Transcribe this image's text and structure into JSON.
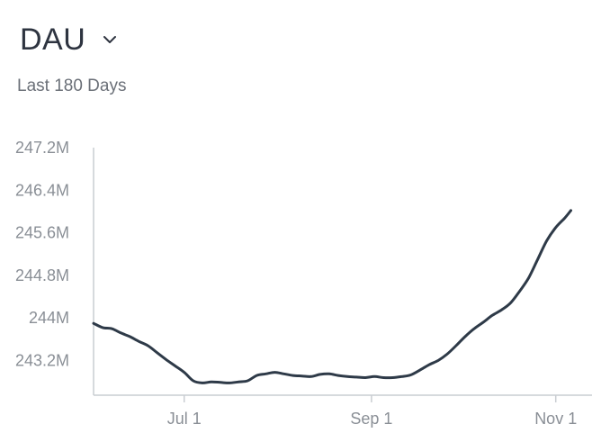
{
  "header": {
    "title": "DAU",
    "dropdown_icon": "chevron-down-icon"
  },
  "subtitle": "Last 180 Days",
  "colors": {
    "line": "#2e3a48",
    "axis": "#c9cdd2",
    "tick_text": "#8a8f96",
    "title": "#2e3440"
  },
  "chart_data": {
    "type": "line",
    "title": "DAU",
    "subtitle": "Last 180 Days",
    "xlabel": "",
    "ylabel": "",
    "x_ticks": [
      {
        "label": "Jul 1",
        "value": 30
      },
      {
        "label": "Sep 1",
        "value": 92
      },
      {
        "label": "Nov 1",
        "value": 153
      }
    ],
    "y_ticks": [
      {
        "label": "243.2M",
        "value": 243.2
      },
      {
        "label": "244M",
        "value": 244.0
      },
      {
        "label": "244.8M",
        "value": 244.8
      },
      {
        "label": "245.6M",
        "value": 245.6
      },
      {
        "label": "246.4M",
        "value": 246.4
      },
      {
        "label": "247.2M",
        "value": 247.2
      }
    ],
    "xlim": [
      0,
      165
    ],
    "ylim": [
      242.55,
      247.2
    ],
    "grid": false,
    "series": [
      {
        "values": [
          [
            0,
            243.9
          ],
          [
            3,
            243.82
          ],
          [
            6,
            243.8
          ],
          [
            9,
            243.72
          ],
          [
            12,
            243.65
          ],
          [
            15,
            243.56
          ],
          [
            18,
            243.48
          ],
          [
            21,
            243.35
          ],
          [
            24,
            243.22
          ],
          [
            27,
            243.1
          ],
          [
            30,
            242.98
          ],
          [
            33,
            242.82
          ],
          [
            36,
            242.78
          ],
          [
            39,
            242.8
          ],
          [
            42,
            242.79
          ],
          [
            45,
            242.78
          ],
          [
            48,
            242.8
          ],
          [
            51,
            242.82
          ],
          [
            54,
            242.92
          ],
          [
            57,
            242.95
          ],
          [
            60,
            242.98
          ],
          [
            63,
            242.95
          ],
          [
            66,
            242.92
          ],
          [
            69,
            242.91
          ],
          [
            72,
            242.9
          ],
          [
            75,
            242.94
          ],
          [
            78,
            242.95
          ],
          [
            81,
            242.92
          ],
          [
            84,
            242.9
          ],
          [
            87,
            242.89
          ],
          [
            90,
            242.88
          ],
          [
            93,
            242.9
          ],
          [
            96,
            242.88
          ],
          [
            99,
            242.88
          ],
          [
            102,
            242.9
          ],
          [
            105,
            242.93
          ],
          [
            108,
            243.02
          ],
          [
            111,
            243.12
          ],
          [
            114,
            243.2
          ],
          [
            117,
            243.32
          ],
          [
            120,
            243.48
          ],
          [
            123,
            243.65
          ],
          [
            126,
            243.8
          ],
          [
            129,
            243.92
          ],
          [
            132,
            244.05
          ],
          [
            135,
            244.15
          ],
          [
            138,
            244.28
          ],
          [
            141,
            244.5
          ],
          [
            144,
            244.75
          ],
          [
            147,
            245.1
          ],
          [
            150,
            245.45
          ],
          [
            153,
            245.7
          ],
          [
            156,
            245.88
          ],
          [
            158,
            246.02
          ]
        ]
      }
    ]
  }
}
